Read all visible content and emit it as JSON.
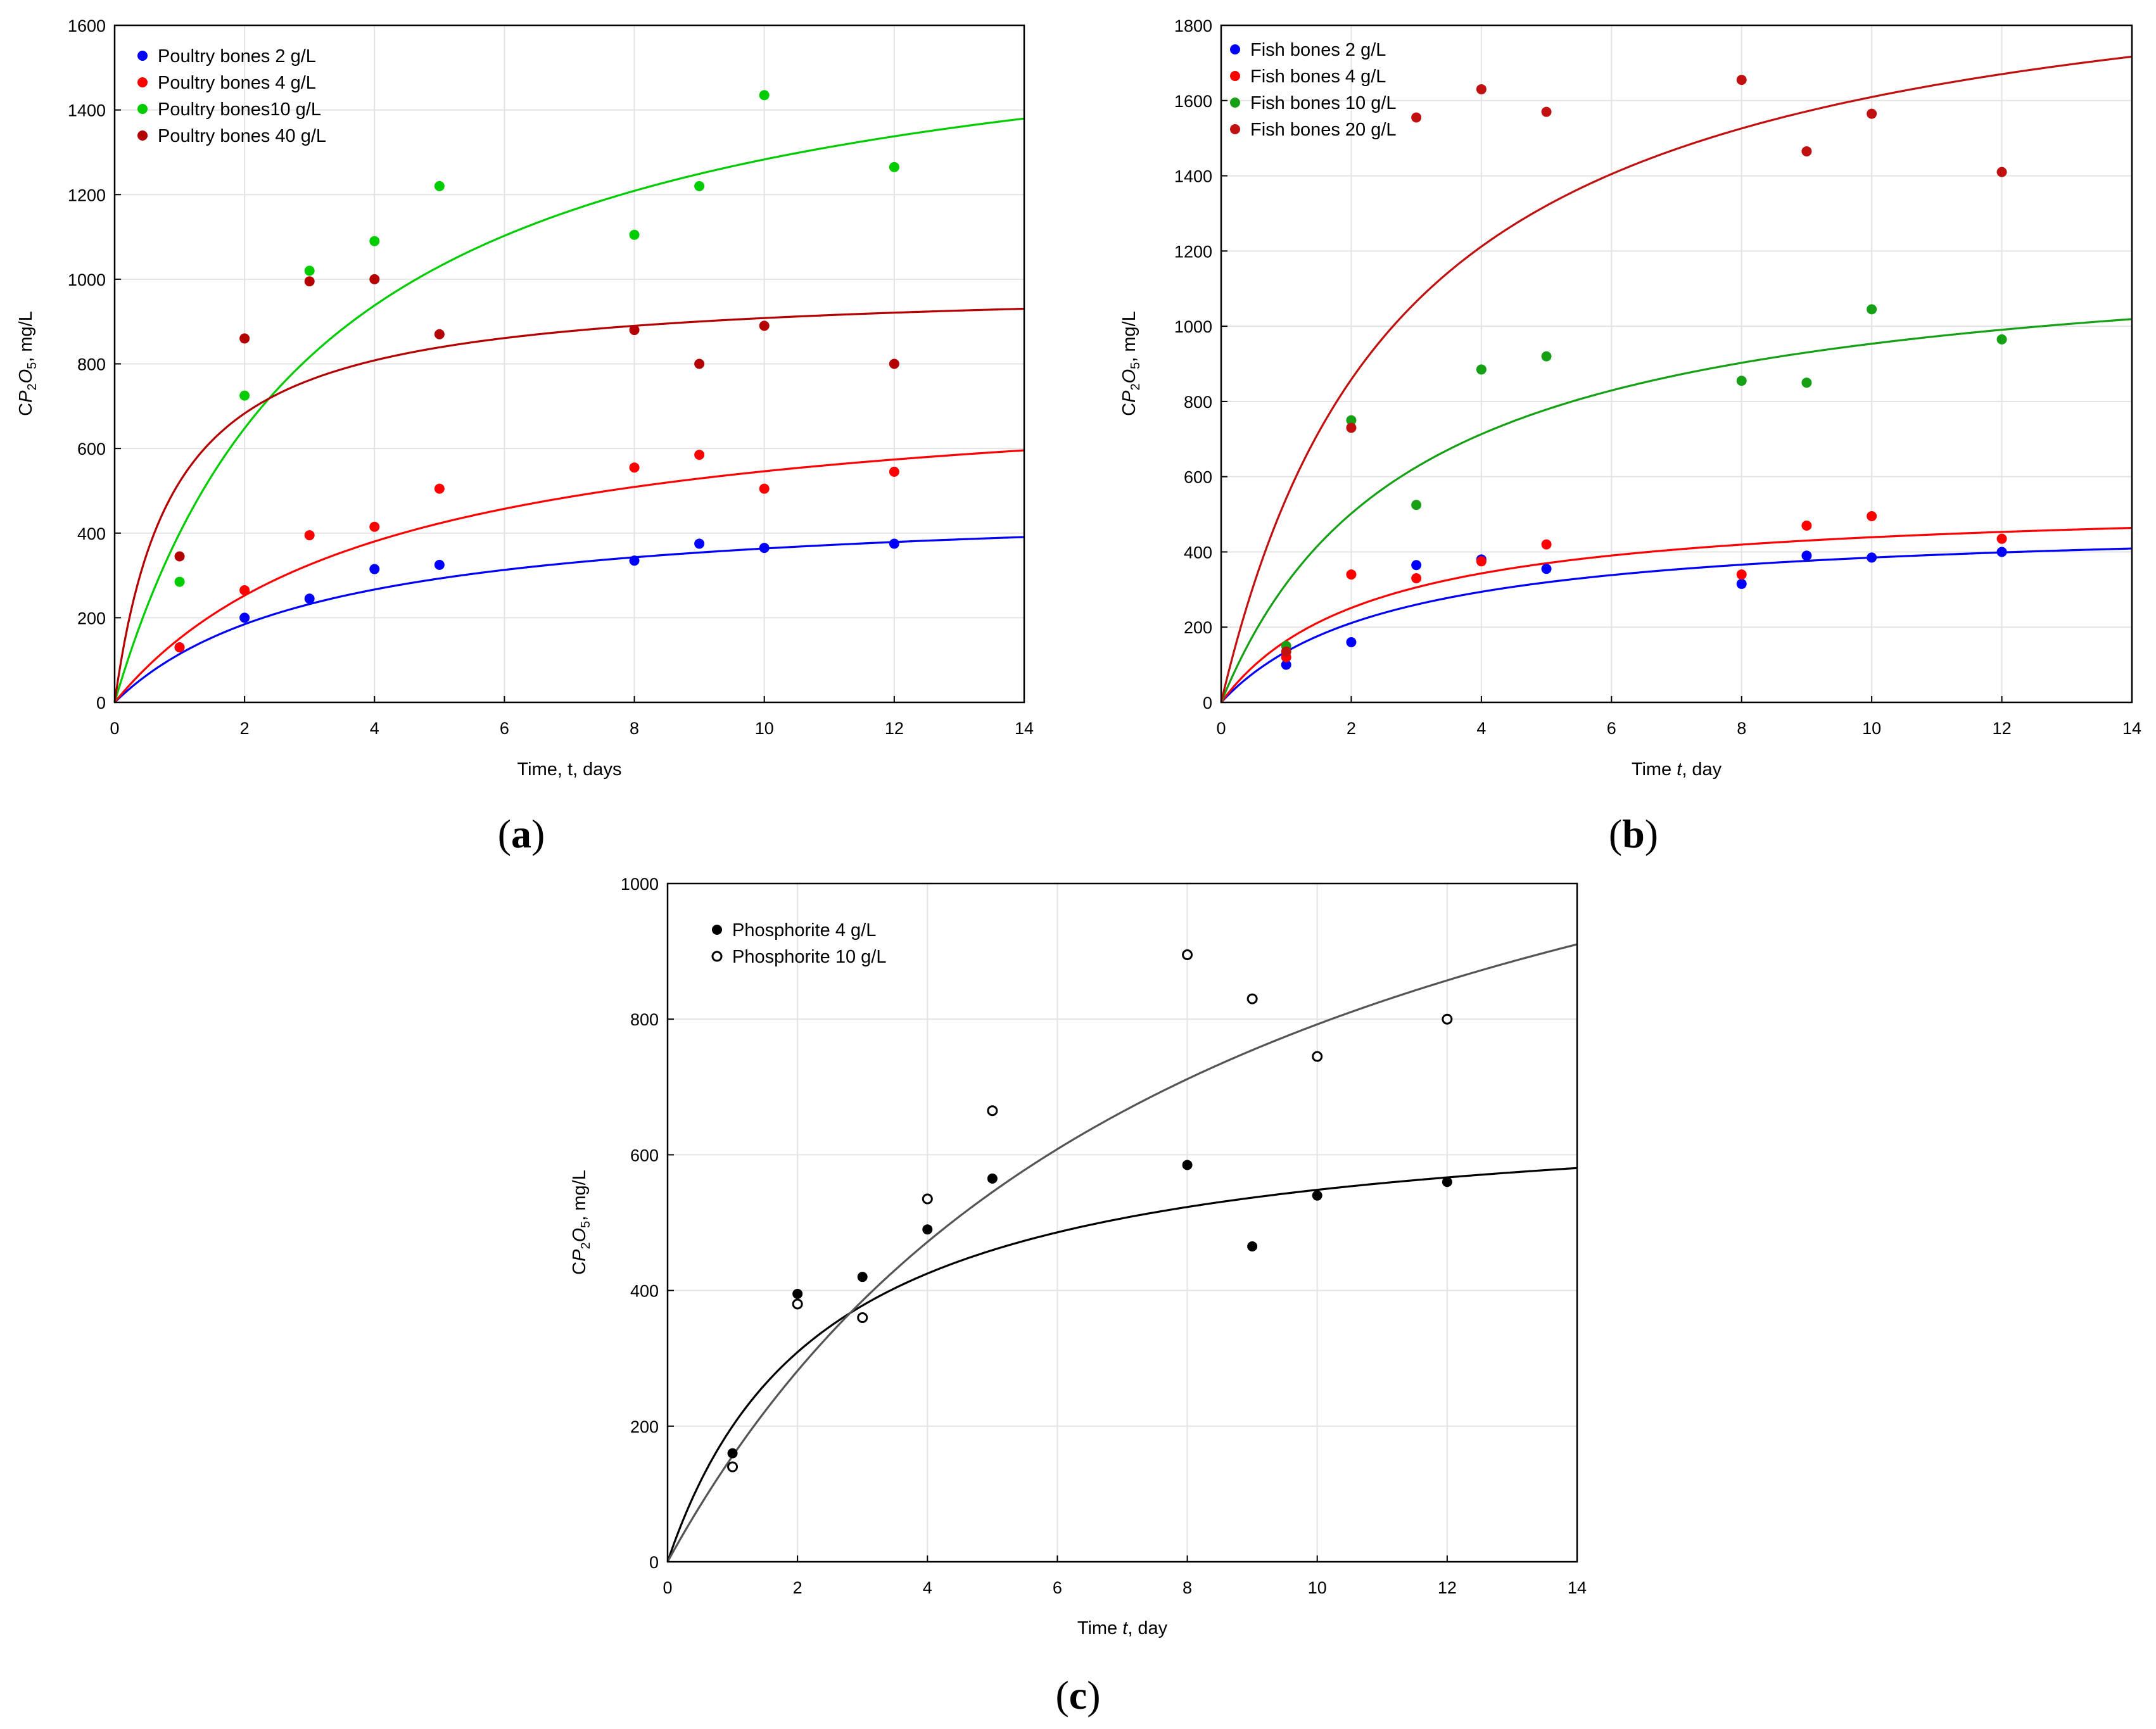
{
  "chart_data": [
    {
      "id": "a",
      "type": "scatter",
      "panel_label": "a",
      "xlabel": "Time, t, days",
      "ylabel_prefix": "C",
      "ylabel_italic": "P",
      "ylabel_sub1": "2",
      "ylabel_mid": "O",
      "ylabel_sub2": "5",
      "ylabel_suffix": ", mg/L",
      "xlim": [
        0,
        14
      ],
      "ylim": [
        0,
        1600
      ],
      "xticks": [
        0,
        2,
        4,
        6,
        8,
        10,
        12,
        14
      ],
      "yticks": [
        0,
        200,
        400,
        600,
        800,
        1000,
        1200,
        1400,
        1600
      ],
      "grid": true,
      "legend_position": "top-left",
      "series": [
        {
          "name": "Poultry bones 2 g/L",
          "color": "#0000ff",
          "marker": "filled",
          "x": [
            1,
            2,
            3,
            4,
            5,
            8,
            9,
            10,
            12
          ],
          "y": [
            130,
            200,
            245,
            315,
            325,
            335,
            375,
            365,
            375
          ],
          "fit": {
            "a": 480,
            "b": 3.2
          }
        },
        {
          "name": "Poultry bones 4 g/L",
          "color": "#ff0000",
          "marker": "filled",
          "x": [
            1,
            2,
            3,
            4,
            5,
            8,
            9,
            10,
            12
          ],
          "y": [
            130,
            265,
            395,
            415,
            505,
            555,
            585,
            505,
            545
          ],
          "fit": {
            "a": 770,
            "b": 4.1
          }
        },
        {
          "name": "Poultry bones10 g/L",
          "color": "#00cc00",
          "marker": "filled",
          "x": [
            1,
            2,
            3,
            4,
            5,
            8,
            9,
            10,
            12
          ],
          "y": [
            285,
            725,
            1020,
            1090,
            1220,
            1105,
            1220,
            1435,
            1265
          ],
          "fit": {
            "a": 1700,
            "b": 3.25
          }
        },
        {
          "name": "Poultry bones 40 g/L",
          "color": "#b40000",
          "marker": "filled",
          "x": [
            1,
            2,
            3,
            4,
            5,
            8,
            9,
            10,
            12
          ],
          "y": [
            345,
            860,
            995,
            1000,
            870,
            880,
            800,
            890,
            800
          ],
          "fit": {
            "a": 990,
            "b": 0.9
          }
        }
      ]
    },
    {
      "id": "b",
      "type": "scatter",
      "panel_label": "b",
      "xlabel_prefix": "Time ",
      "xlabel_italic": "t",
      "xlabel_suffix": ", day",
      "ylabel_prefix": "C",
      "ylabel_italic": "P",
      "ylabel_sub1": "2",
      "ylabel_mid": "O",
      "ylabel_sub2": "5",
      "ylabel_suffix": ", mg/L",
      "xlim": [
        0,
        14
      ],
      "ylim": [
        0,
        1800
      ],
      "xticks": [
        0,
        2,
        4,
        6,
        8,
        10,
        12,
        14
      ],
      "yticks": [
        0,
        200,
        400,
        600,
        800,
        1000,
        1200,
        1400,
        1600,
        1800
      ],
      "grid": true,
      "legend_position": "top-left",
      "series": [
        {
          "name": "Fish bones 2 g/L",
          "color": "#0000ff",
          "marker": "filled",
          "x": [
            1,
            2,
            3,
            4,
            5,
            8,
            9,
            10,
            12
          ],
          "y": [
            100,
            160,
            365,
            380,
            355,
            315,
            390,
            385,
            400
          ],
          "fit": {
            "a": 485,
            "b": 2.6
          }
        },
        {
          "name": "Fish bones 4 g/L",
          "color": "#ff0000",
          "marker": "filled",
          "x": [
            1,
            2,
            3,
            4,
            5,
            8,
            9,
            10,
            12
          ],
          "y": [
            120,
            340,
            330,
            375,
            420,
            340,
            470,
            495,
            435
          ],
          "fit": {
            "a": 540,
            "b": 2.3
          }
        },
        {
          "name": "Fish bones 10 g/L",
          "color": "#16a016",
          "marker": "filled",
          "x": [
            1,
            2,
            3,
            4,
            5,
            8,
            9,
            10,
            12
          ],
          "y": [
            150,
            750,
            525,
            885,
            920,
            855,
            850,
            1045,
            965
          ],
          "fit": {
            "a": 1230,
            "b": 2.9
          }
        },
        {
          "name": "Fish bones 20 g/L",
          "color": "#c01010",
          "marker": "filled",
          "x": [
            1,
            2,
            3,
            4,
            5,
            8,
            9,
            10,
            12
          ],
          "y": [
            135,
            730,
            1555,
            1630,
            1570,
            1655,
            1465,
            1565,
            1410
          ],
          "fit": {
            "a": 2060,
            "b": 2.8
          }
        }
      ]
    },
    {
      "id": "c",
      "type": "scatter",
      "panel_label": "c",
      "xlabel_prefix": "Time ",
      "xlabel_italic": "t",
      "xlabel_suffix": ", day",
      "ylabel_prefix": "C",
      "ylabel_italic": "P",
      "ylabel_sub1": "2",
      "ylabel_mid": "O",
      "ylabel_sub2": "5",
      "ylabel_suffix": ", mg/L",
      "xlim": [
        0,
        14
      ],
      "ylim": [
        0,
        1000
      ],
      "xticks": [
        0,
        2,
        4,
        6,
        8,
        10,
        12,
        14
      ],
      "yticks": [
        0,
        200,
        400,
        600,
        800,
        1000
      ],
      "grid": true,
      "legend_position": "top-left",
      "series": [
        {
          "name": "Phosphorite 4 g/L",
          "color": "#000000",
          "marker": "filled",
          "x": [
            1,
            2,
            3,
            4,
            5,
            8,
            9,
            10,
            12
          ],
          "y": [
            160,
            395,
            420,
            490,
            565,
            585,
            465,
            540,
            560
          ],
          "fit": {
            "a": 680,
            "b": 2.4
          }
        },
        {
          "name": "Phosphorite 10 g/L",
          "color": "#555555",
          "marker": "open",
          "x": [
            1,
            2,
            3,
            4,
            5,
            8,
            9,
            10,
            12
          ],
          "y": [
            140,
            380,
            360,
            535,
            665,
            895,
            830,
            745,
            800
          ],
          "fit": {
            "a": 1450,
            "b": 8.3
          }
        }
      ]
    }
  ]
}
